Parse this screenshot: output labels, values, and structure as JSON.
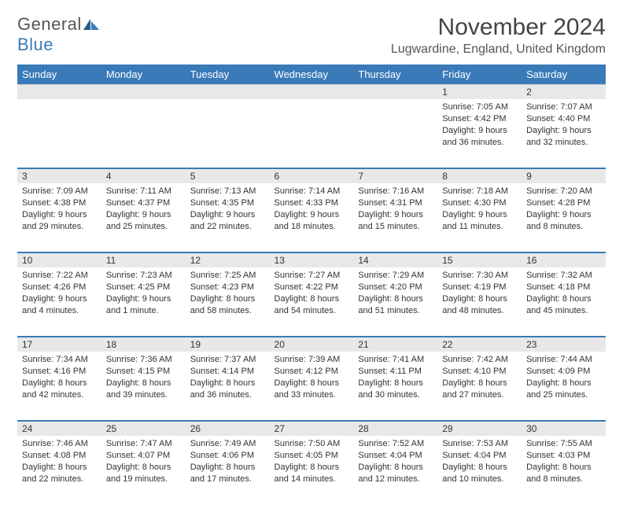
{
  "logo": {
    "text1": "General",
    "text2": "Blue"
  },
  "title": "November 2024",
  "location": "Lugwardine, England, United Kingdom",
  "colors": {
    "header_bg": "#3a7ab8",
    "header_fg": "#ffffff",
    "numrow_bg": "#e8e8e8",
    "sep": "#3a7ab8"
  },
  "dayHeaders": [
    "Sunday",
    "Monday",
    "Tuesday",
    "Wednesday",
    "Thursday",
    "Friday",
    "Saturday"
  ],
  "weeks": [
    [
      null,
      null,
      null,
      null,
      null,
      {
        "n": "1",
        "sr": "Sunrise: 7:05 AM",
        "ss": "Sunset: 4:42 PM",
        "dl": "Daylight: 9 hours and 36 minutes."
      },
      {
        "n": "2",
        "sr": "Sunrise: 7:07 AM",
        "ss": "Sunset: 4:40 PM",
        "dl": "Daylight: 9 hours and 32 minutes."
      }
    ],
    [
      {
        "n": "3",
        "sr": "Sunrise: 7:09 AM",
        "ss": "Sunset: 4:38 PM",
        "dl": "Daylight: 9 hours and 29 minutes."
      },
      {
        "n": "4",
        "sr": "Sunrise: 7:11 AM",
        "ss": "Sunset: 4:37 PM",
        "dl": "Daylight: 9 hours and 25 minutes."
      },
      {
        "n": "5",
        "sr": "Sunrise: 7:13 AM",
        "ss": "Sunset: 4:35 PM",
        "dl": "Daylight: 9 hours and 22 minutes."
      },
      {
        "n": "6",
        "sr": "Sunrise: 7:14 AM",
        "ss": "Sunset: 4:33 PM",
        "dl": "Daylight: 9 hours and 18 minutes."
      },
      {
        "n": "7",
        "sr": "Sunrise: 7:16 AM",
        "ss": "Sunset: 4:31 PM",
        "dl": "Daylight: 9 hours and 15 minutes."
      },
      {
        "n": "8",
        "sr": "Sunrise: 7:18 AM",
        "ss": "Sunset: 4:30 PM",
        "dl": "Daylight: 9 hours and 11 minutes."
      },
      {
        "n": "9",
        "sr": "Sunrise: 7:20 AM",
        "ss": "Sunset: 4:28 PM",
        "dl": "Daylight: 9 hours and 8 minutes."
      }
    ],
    [
      {
        "n": "10",
        "sr": "Sunrise: 7:22 AM",
        "ss": "Sunset: 4:26 PM",
        "dl": "Daylight: 9 hours and 4 minutes."
      },
      {
        "n": "11",
        "sr": "Sunrise: 7:23 AM",
        "ss": "Sunset: 4:25 PM",
        "dl": "Daylight: 9 hours and 1 minute."
      },
      {
        "n": "12",
        "sr": "Sunrise: 7:25 AM",
        "ss": "Sunset: 4:23 PM",
        "dl": "Daylight: 8 hours and 58 minutes."
      },
      {
        "n": "13",
        "sr": "Sunrise: 7:27 AM",
        "ss": "Sunset: 4:22 PM",
        "dl": "Daylight: 8 hours and 54 minutes."
      },
      {
        "n": "14",
        "sr": "Sunrise: 7:29 AM",
        "ss": "Sunset: 4:20 PM",
        "dl": "Daylight: 8 hours and 51 minutes."
      },
      {
        "n": "15",
        "sr": "Sunrise: 7:30 AM",
        "ss": "Sunset: 4:19 PM",
        "dl": "Daylight: 8 hours and 48 minutes."
      },
      {
        "n": "16",
        "sr": "Sunrise: 7:32 AM",
        "ss": "Sunset: 4:18 PM",
        "dl": "Daylight: 8 hours and 45 minutes."
      }
    ],
    [
      {
        "n": "17",
        "sr": "Sunrise: 7:34 AM",
        "ss": "Sunset: 4:16 PM",
        "dl": "Daylight: 8 hours and 42 minutes."
      },
      {
        "n": "18",
        "sr": "Sunrise: 7:36 AM",
        "ss": "Sunset: 4:15 PM",
        "dl": "Daylight: 8 hours and 39 minutes."
      },
      {
        "n": "19",
        "sr": "Sunrise: 7:37 AM",
        "ss": "Sunset: 4:14 PM",
        "dl": "Daylight: 8 hours and 36 minutes."
      },
      {
        "n": "20",
        "sr": "Sunrise: 7:39 AM",
        "ss": "Sunset: 4:12 PM",
        "dl": "Daylight: 8 hours and 33 minutes."
      },
      {
        "n": "21",
        "sr": "Sunrise: 7:41 AM",
        "ss": "Sunset: 4:11 PM",
        "dl": "Daylight: 8 hours and 30 minutes."
      },
      {
        "n": "22",
        "sr": "Sunrise: 7:42 AM",
        "ss": "Sunset: 4:10 PM",
        "dl": "Daylight: 8 hours and 27 minutes."
      },
      {
        "n": "23",
        "sr": "Sunrise: 7:44 AM",
        "ss": "Sunset: 4:09 PM",
        "dl": "Daylight: 8 hours and 25 minutes."
      }
    ],
    [
      {
        "n": "24",
        "sr": "Sunrise: 7:46 AM",
        "ss": "Sunset: 4:08 PM",
        "dl": "Daylight: 8 hours and 22 minutes."
      },
      {
        "n": "25",
        "sr": "Sunrise: 7:47 AM",
        "ss": "Sunset: 4:07 PM",
        "dl": "Daylight: 8 hours and 19 minutes."
      },
      {
        "n": "26",
        "sr": "Sunrise: 7:49 AM",
        "ss": "Sunset: 4:06 PM",
        "dl": "Daylight: 8 hours and 17 minutes."
      },
      {
        "n": "27",
        "sr": "Sunrise: 7:50 AM",
        "ss": "Sunset: 4:05 PM",
        "dl": "Daylight: 8 hours and 14 minutes."
      },
      {
        "n": "28",
        "sr": "Sunrise: 7:52 AM",
        "ss": "Sunset: 4:04 PM",
        "dl": "Daylight: 8 hours and 12 minutes."
      },
      {
        "n": "29",
        "sr": "Sunrise: 7:53 AM",
        "ss": "Sunset: 4:04 PM",
        "dl": "Daylight: 8 hours and 10 minutes."
      },
      {
        "n": "30",
        "sr": "Sunrise: 7:55 AM",
        "ss": "Sunset: 4:03 PM",
        "dl": "Daylight: 8 hours and 8 minutes."
      }
    ]
  ]
}
